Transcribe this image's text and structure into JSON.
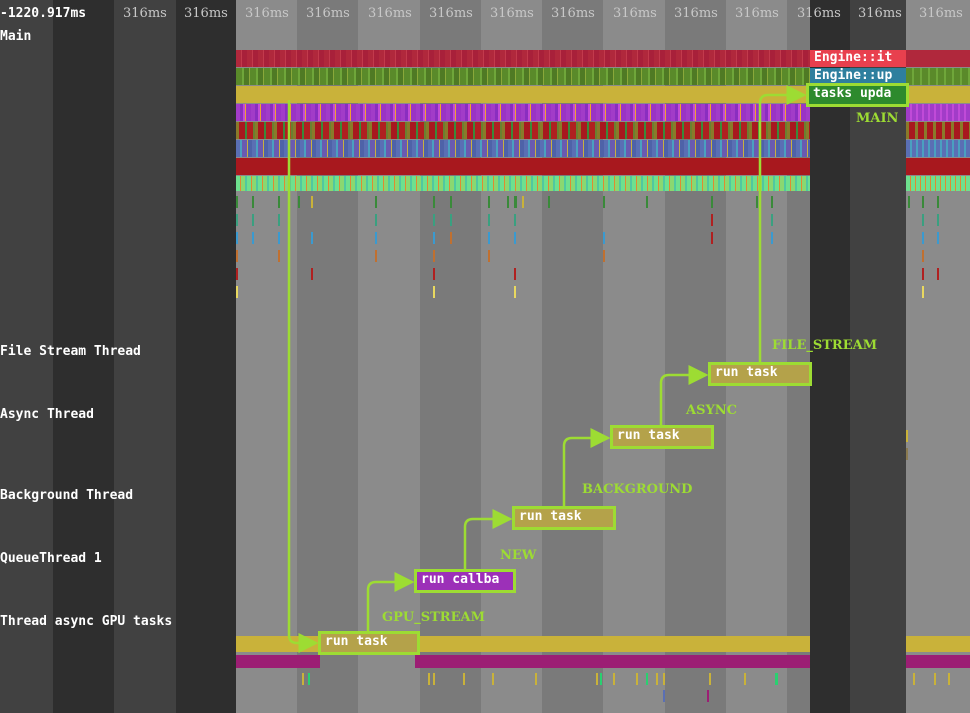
{
  "timeline": {
    "origin": "-1220.917ms",
    "tick_label": "316ms",
    "tick_count": 14
  },
  "threads": {
    "main": "Main",
    "file_stream": "File Stream Thread",
    "async": "Async Thread",
    "background": "Background Thread",
    "queue": "QueueThread 1",
    "gpu": "Thread async GPU tasks"
  },
  "main_slices": {
    "engine_it": "Engine::it",
    "engine_up": "Engine::up",
    "tasks_upda": "tasks upda"
  },
  "flow": [
    {
      "slice": "run task",
      "label": "GPU_STREAM"
    },
    {
      "slice": "run callba",
      "label": "NEW"
    },
    {
      "slice": "run task",
      "label": "BACKGROUND"
    },
    {
      "slice": "run task",
      "label": "ASYNC"
    },
    {
      "slice": "run task",
      "label": "FILE_STREAM"
    },
    {
      "slice": "tasks upda",
      "label": "MAIN"
    }
  ],
  "colors": {
    "flow": "#9ddc33",
    "crimson": "#b0283c",
    "olive": "#5a8a2a",
    "gold": "#c9b23a",
    "violet": "#a23cc8",
    "steel": "#5a6fb4",
    "darkred": "#a8181e",
    "mint": "#6ee08e",
    "magenta": "#9c1e74",
    "runtask": "#b4a24a",
    "callback": "#9c30b8",
    "engine_it": "#e8404e",
    "engine_up": "#2e7f9e",
    "tasks": "#2d8a2d"
  }
}
